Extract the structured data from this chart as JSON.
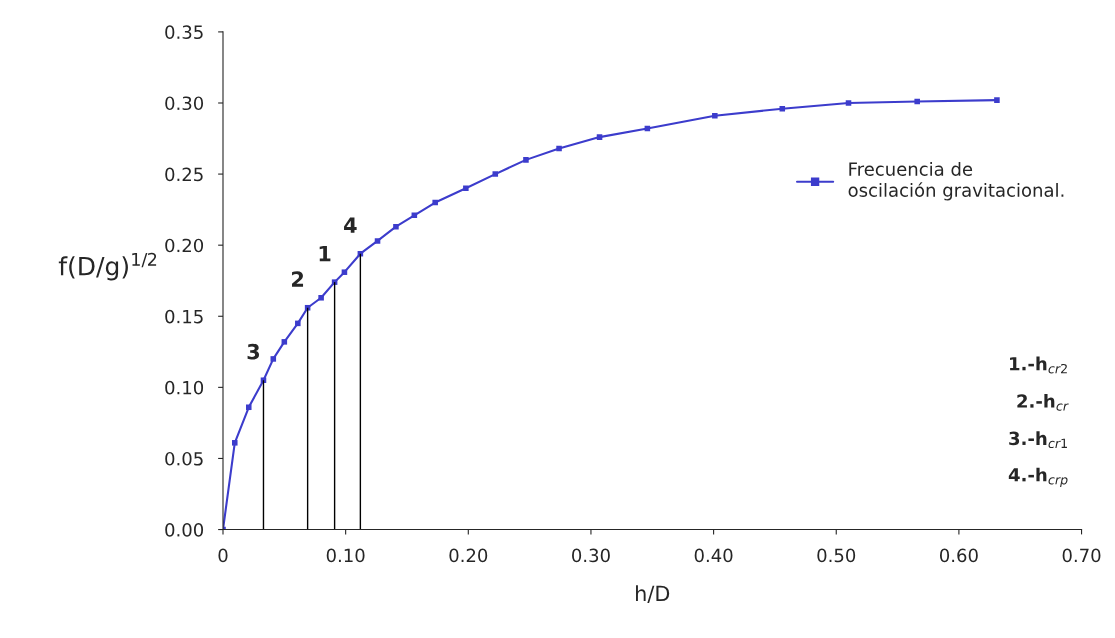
{
  "chart_data": {
    "type": "line",
    "xlabel": "h/D",
    "ylabel": "f(D/g)$^{1/2}$",
    "series": [
      {
        "name": "Frecuencia de\noscilación gravitacional.",
        "color": "#3c3ccc",
        "marker": "square",
        "x": [
          0,
          0.0096,
          0.021,
          0.033,
          0.041,
          0.05,
          0.061,
          0.069,
          0.08,
          0.091,
          0.099,
          0.112,
          0.126,
          0.141,
          0.156,
          0.173,
          0.198,
          0.222,
          0.247,
          0.274,
          0.307,
          0.346,
          0.401,
          0.456,
          0.51,
          0.566,
          0.631
        ],
        "values": [
          0,
          0.061,
          0.086,
          0.105,
          0.12,
          0.132,
          0.145,
          0.156,
          0.163,
          0.174,
          0.181,
          0.194,
          0.203,
          0.213,
          0.221,
          0.23,
          0.24,
          0.25,
          0.26,
          0.268,
          0.276,
          0.282,
          0.291,
          0.296,
          0.3,
          0.301,
          0.302
        ]
      }
    ],
    "annotations": [
      {
        "text": "3",
        "x": 0.033,
        "y": 0.105
      },
      {
        "text": "2",
        "x": 0.069,
        "y": 0.156
      },
      {
        "text": "1",
        "x": 0.091,
        "y": 0.174
      },
      {
        "text": "4",
        "x": 0.112,
        "y": 0.194
      },
      "1.-h$_{cr2}$",
      "2.-h$_{cr}$",
      "3.-h$_{cr1}$",
      "4.-h$_{crp}$"
    ],
    "xlim": [
      0,
      0.7
    ],
    "ylim": [
      0,
      0.35
    ],
    "xticks": [
      {
        "value": 0,
        "label": "0"
      },
      {
        "value": 0.1,
        "label": "0.10"
      },
      {
        "value": 0.2,
        "label": "0.20"
      },
      {
        "value": 0.3,
        "label": "0.30"
      },
      {
        "value": 0.4,
        "label": "0.40"
      },
      {
        "value": 0.5,
        "label": "0.50"
      },
      {
        "value": 0.6,
        "label": "0.60"
      },
      {
        "value": 0.7,
        "label": "0.70"
      }
    ],
    "yticks": [
      {
        "value": 0,
        "label": "0.00"
      },
      {
        "value": 0.05,
        "label": "0.05"
      },
      {
        "value": 0.1,
        "label": "0.10"
      },
      {
        "value": 0.15,
        "label": "0.15"
      },
      {
        "value": 0.2,
        "label": "0.20"
      },
      {
        "value": 0.25,
        "label": "0.25"
      },
      {
        "value": 0.3,
        "label": "0.30"
      },
      {
        "value": 0.35,
        "label": "0.35"
      }
    ],
    "grid": false,
    "legend": "right"
  }
}
